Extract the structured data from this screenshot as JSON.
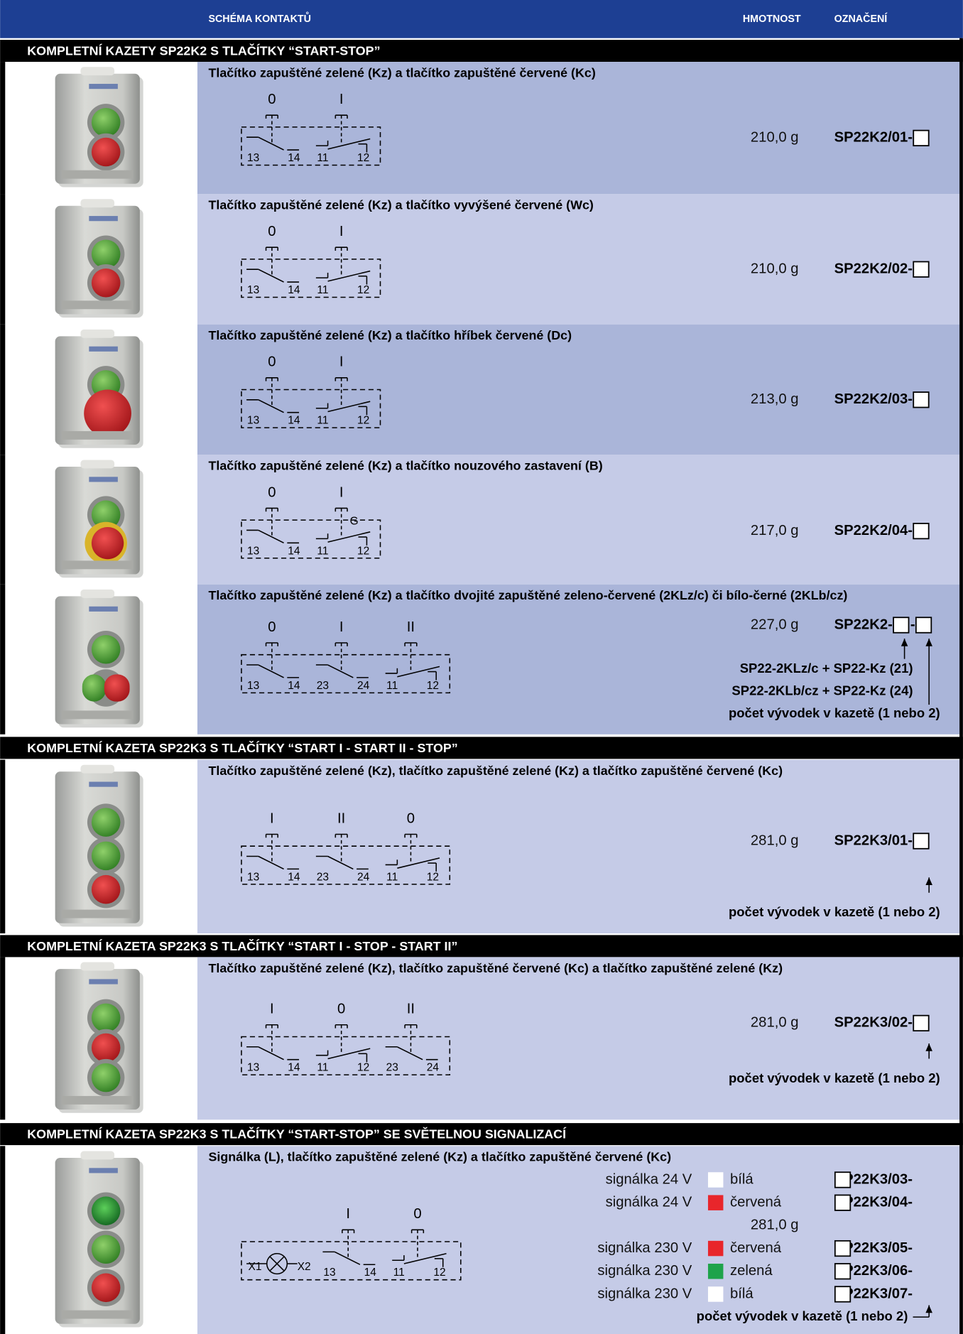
{
  "header": {
    "schema": "SCHÉMA KONTAKTŮ",
    "weight": "HMOTNOST",
    "code": "OZNAČENÍ"
  },
  "sections": [
    {
      "title": "KOMPLETNÍ KAZETY SP22K2 S TLAČÍTKY “START-STOP”",
      "items": [
        {
          "title": "Tlačítko zapuštěné zelené (Kz) a tlačítko zapuštěné červené (Kc)",
          "weight": "210,0 g",
          "code": [
            "SP22K2/01-"
          ],
          "contacts": [
            {
              "button": "0",
              "type": "no",
              "terminals": [
                "13",
                "14"
              ]
            },
            {
              "button": "I",
              "type": "nc",
              "terminals": [
                "11",
                "12"
              ]
            }
          ]
        },
        {
          "title": "Tlačítko zapuštěné zelené (Kz) a tlačítko vyvýšené červené (Wc)",
          "weight": "210,0 g",
          "code": [
            "SP22K2/02-"
          ],
          "contacts": [
            {
              "button": "0",
              "type": "no",
              "terminals": [
                "13",
                "14"
              ]
            },
            {
              "button": "I",
              "type": "nc",
              "terminals": [
                "11",
                "12"
              ]
            }
          ]
        },
        {
          "title": "Tlačítko zapuštěné zelené (Kz) a tlačítko hříbek červené (Dc)",
          "weight": "213,0 g",
          "code": [
            "SP22K2/03-"
          ],
          "contacts": [
            {
              "button": "0",
              "type": "no",
              "terminals": [
                "13",
                "14"
              ]
            },
            {
              "button": "I",
              "type": "nc",
              "terminals": [
                "11",
                "12"
              ]
            }
          ]
        },
        {
          "title": "Tlačítko zapuštěné zelené (Kz) a tlačítko nouzového zastavení (B)",
          "weight": "217,0 g",
          "code": [
            "SP22K2/04-"
          ],
          "contacts": [
            {
              "button": "0",
              "type": "no",
              "terminals": [
                "13",
                "14"
              ]
            },
            {
              "button": "I",
              "type": "nc",
              "terminals": [
                "11",
                "12"
              ],
              "mark": "G"
            }
          ]
        },
        {
          "title": "Tlačítko zapuštěné zelené (Kz) a tlačítko dvojité zapuštěné zeleno-červené (2KLz/c) či bílo-černé (2KLb/cz)",
          "weight": "227,0 g",
          "code": [
            "SP22K2-",
            "-"
          ],
          "contacts": [
            {
              "button": "0",
              "type": "no",
              "terminals": [
                "13",
                "14"
              ]
            },
            {
              "button": "I",
              "type": "no",
              "terminals": [
                "23",
                "24"
              ]
            },
            {
              "button": "II",
              "type": "nc",
              "terminals": [
                "11",
                "12"
              ]
            }
          ],
          "notes": [
            "SP22-2KLz/c + SP22-Kz (21)",
            "SP22-2KLb/cz + SP22-Kz (24)",
            "počet vývodek v kazetě (1 nebo 2)"
          ]
        }
      ]
    },
    {
      "title": "KOMPLETNÍ KAZETA SP22K3 S TLAČÍTKY “START I - START II - STOP”",
      "items": [
        {
          "title": "Tlačítko zapuštěné zelené (Kz), tlačítko zapuštěné zelené (Kz) a tlačítko zapuštěné červené (Kc)",
          "weight": "281,0 g",
          "code": [
            "SP22K3/01-"
          ],
          "contacts": [
            {
              "button": "I",
              "type": "no",
              "terminals": [
                "13",
                "14"
              ]
            },
            {
              "button": "II",
              "type": "no",
              "terminals": [
                "23",
                "24"
              ]
            },
            {
              "button": "0",
              "type": "nc",
              "terminals": [
                "11",
                "12"
              ]
            }
          ],
          "notes": [
            "počet vývodek v kazetě (1 nebo 2)"
          ]
        }
      ]
    },
    {
      "title": "KOMPLETNÍ KAZETA SP22K3 S TLAČÍTKY “START I - STOP - START II”",
      "items": [
        {
          "title": "Tlačítko zapuštěné zelené (Kz), tlačítko zapuštěné červené (Kc) a tlačítko zapuštěné zelené (Kz)",
          "weight": "281,0 g",
          "code": [
            "SP22K3/02-"
          ],
          "contacts": [
            {
              "button": "I",
              "type": "no",
              "terminals": [
                "13",
                "14"
              ]
            },
            {
              "button": "0",
              "type": "nc",
              "terminals": [
                "11",
                "12"
              ]
            },
            {
              "button": "II",
              "type": "no",
              "terminals": [
                "23",
                "24"
              ]
            }
          ],
          "notes": [
            "počet vývodek v kazetě (1 nebo 2)"
          ]
        }
      ]
    },
    {
      "title": "KOMPLETNÍ KAZETA SP22K3 S TLAČÍTKY “START-STOP” SE SVĚTELNOU SIGNALIZACÍ",
      "items": [
        {
          "title": "Signálka (L), tlačítko zapuštěné zelené (Kz) a tlačítko zapuštěné červené (Kc)",
          "weight": "281,0 g",
          "lamp": [
            "X1",
            "X2"
          ],
          "contacts": [
            {
              "button": "I",
              "type": "no",
              "terminals": [
                "13",
                "14"
              ]
            },
            {
              "button": "0",
              "type": "nc",
              "terminals": [
                "11",
                "12"
              ]
            }
          ],
          "signals": [
            {
              "label": "signálka 24 V",
              "color": "#ffffff",
              "name": "bílá",
              "code": "SP22K3/03-"
            },
            {
              "label": "signálka 24 V",
              "color": "#e8262b",
              "name": "červená",
              "code": "SP22K3/04-"
            },
            {
              "label": "signálka 230 V",
              "color": "#e8262b",
              "name": "červená",
              "code": "SP22K3/05-"
            },
            {
              "label": "signálka 230 V",
              "color": "#1ea34a",
              "name": "zelená",
              "code": "SP22K3/06-"
            },
            {
              "label": "signálka 230 V",
              "color": "#ffffff",
              "name": "bílá",
              "code": "SP22K3/07-"
            }
          ],
          "notes": [
            "počet vývodek v kazetě (1 nebo 2)"
          ]
        }
      ]
    }
  ]
}
